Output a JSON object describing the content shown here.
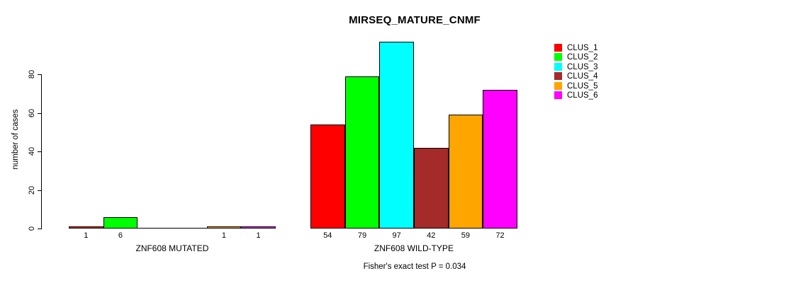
{
  "title": "MIRSEQ_MATURE_CNMF",
  "footnote": "Fisher's exact test P = 0.034",
  "chart_data": {
    "type": "bar",
    "title": "MIRSEQ_MATURE_CNMF",
    "ylabel": "number of cases",
    "yticks": [
      0,
      20,
      40,
      60,
      80
    ],
    "ylim": [
      0,
      97
    ],
    "grid": false,
    "legend_position": "top-right",
    "bar_border_color": "#000000",
    "series": [
      {
        "name": "CLUS_1",
        "color": "#FF0000"
      },
      {
        "name": "CLUS_2",
        "color": "#00FF00"
      },
      {
        "name": "CLUS_3",
        "color": "#00FFFF"
      },
      {
        "name": "CLUS_4",
        "color": "#A52A2A"
      },
      {
        "name": "CLUS_5",
        "color": "#FFA500"
      },
      {
        "name": "CLUS_6",
        "color": "#FF00FF"
      }
    ],
    "groups": [
      {
        "label": "ZNF608 MUTATED",
        "values": [
          1,
          6,
          0,
          0,
          1,
          1
        ]
      },
      {
        "label": "ZNF608 WILD-TYPE",
        "values": [
          54,
          79,
          97,
          42,
          59,
          72
        ]
      }
    ],
    "annotation": "Fisher's exact test P = 0.034"
  }
}
